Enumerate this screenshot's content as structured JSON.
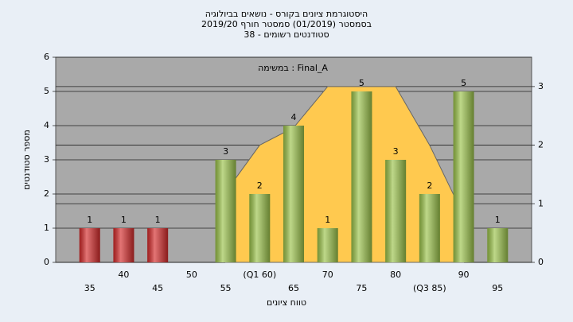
{
  "chart_data": {
    "type": "bar",
    "title": "היסטוגרמת ציונים בקורס - נושאים בביולוגיה",
    "subtitle": "בסמסטר  (01/2019)  סמסטר חורף 2019/20",
    "subtitle2": "סטודנטים רשומים - 38",
    "annotation": "במשימה : Final_A",
    "x_label": "טווח ציונים",
    "y_label": "מספר סטודנטים",
    "categories": [
      "35",
      "40",
      "45",
      "50",
      "55",
      "(Q1 60)",
      "65",
      "70",
      "75",
      "80",
      "(Q3 85)",
      "90",
      "95"
    ],
    "values": [
      1,
      1,
      1,
      0,
      3,
      2,
      4,
      1,
      5,
      3,
      2,
      5,
      1
    ],
    "colors": [
      "#d42a2a",
      "#d42a2a",
      "#d42a2a",
      "#9bc34a",
      "#9bc34a",
      "#9bc34a",
      "#9bc34a",
      "#9bc34a",
      "#9bc34a",
      "#9bc34a",
      "#9bc34a",
      "#9bc34a",
      "#9bc34a"
    ],
    "curve": {
      "axis": "y2",
      "color": "#ffc94f",
      "values": [
        null,
        null,
        null,
        null,
        1.2,
        2.0,
        2.3,
        3.0,
        3.0,
        3.0,
        2.0,
        0.8,
        null
      ]
    },
    "ylim": [
      0,
      6
    ],
    "yticks": [
      0,
      1,
      2,
      3,
      4,
      5,
      6
    ],
    "y2lim": [
      0,
      3.5
    ],
    "y2ticks": [
      0,
      1,
      2,
      3
    ],
    "grid": true
  }
}
